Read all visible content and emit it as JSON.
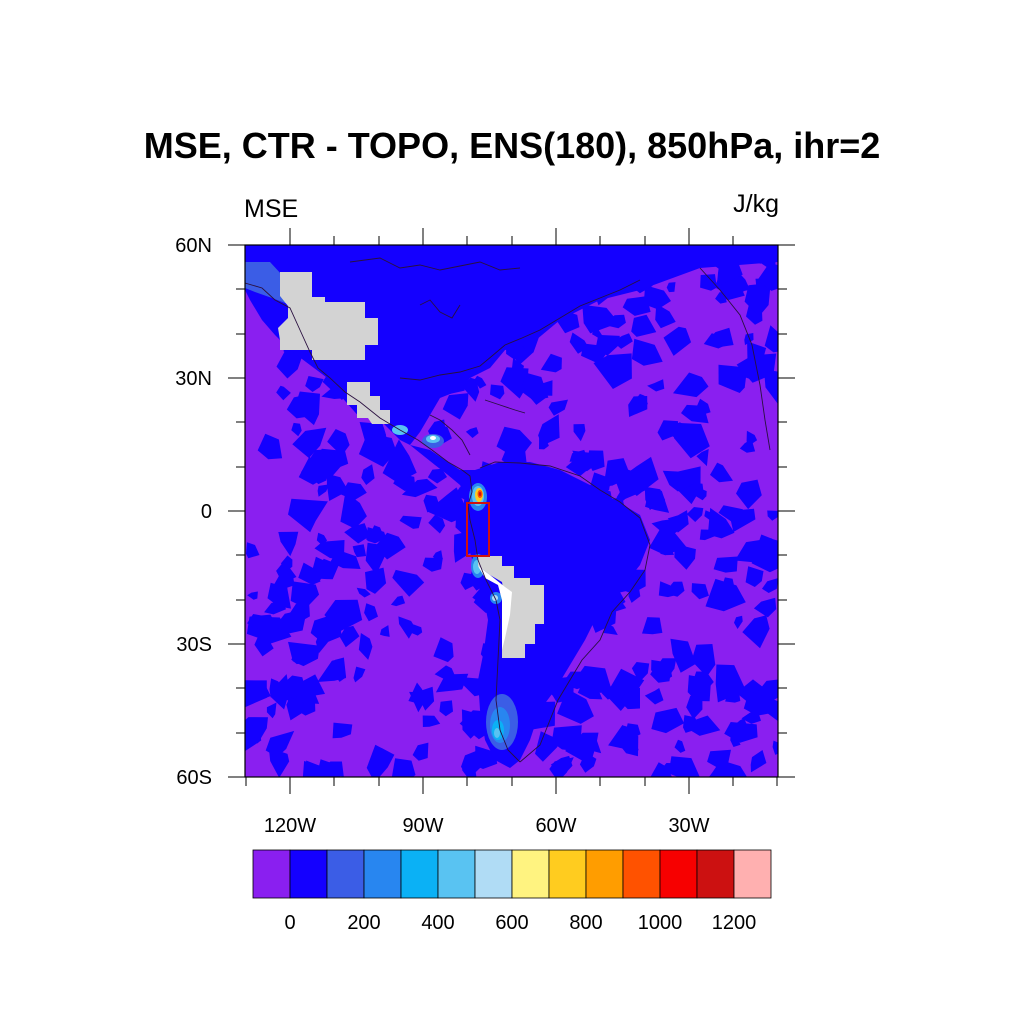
{
  "title": "MSE, CTR - TOPO, ENS(180), 850hPa, ihr=2",
  "left_string": "MSE",
  "right_string": "J/kg",
  "lat_labels": [
    "60N",
    "30N",
    "0",
    "30S",
    "60S"
  ],
  "lon_labels": [
    "120W",
    "90W",
    "60W",
    "30W"
  ],
  "colorbar": {
    "colors": [
      "#8a1ff0",
      "#1400ff",
      "#3b5de6",
      "#2886f0",
      "#0bb1f5",
      "#59c3f2",
      "#b0dcf5",
      "#fff380",
      "#ffcc1f",
      "#ff9d00",
      "#ff5200",
      "#f70000",
      "#cc1111",
      "#ffb0b0"
    ],
    "labels": [
      "0",
      "200",
      "400",
      "600",
      "800",
      "1000",
      "1200"
    ]
  },
  "chart_data": {
    "type": "heatmap",
    "title": "MSE, CTR - TOPO, ENS(180), 850hPa, ihr=2",
    "left_string": "MSE",
    "units": "J/kg",
    "pressure_level": "850hPa",
    "lon_range": [
      -130,
      10
    ],
    "lat_range": [
      -60,
      60
    ],
    "contour_levels": [
      -100,
      0,
      100,
      200,
      300,
      400,
      500,
      600,
      700,
      800,
      900,
      1000,
      1100,
      1200
    ],
    "background_band": "-100 to 0 mixed with 0 to 100 (small-scale noise)",
    "missing_value_color": "#d3d3d3",
    "missing_regions": [
      "Rocky Mountains / western US plateau",
      "Sierra Madre (Mexico)",
      "Andes (Peru, Bolivia, Chile)"
    ],
    "highlights": [
      {
        "location": "Colombian/Ecuadorian Andes",
        "lon": -78,
        "lat": 3,
        "max_value_range": "900-1100"
      },
      {
        "location": "Central America / Guatemala",
        "lon": -89,
        "lat": 16,
        "max_value_range": "500-600"
      },
      {
        "location": "southern Andes / Patagonia",
        "lon": -73,
        "lat": -49,
        "max_value_range": "400-500"
      },
      {
        "location": "Peruvian coast",
        "lon": -78,
        "lat": -13,
        "max_value_range": "300-500"
      }
    ],
    "box": {
      "lon": [
        -80,
        -75
      ],
      "lat": [
        -10,
        2
      ],
      "color": "#d01010"
    }
  }
}
